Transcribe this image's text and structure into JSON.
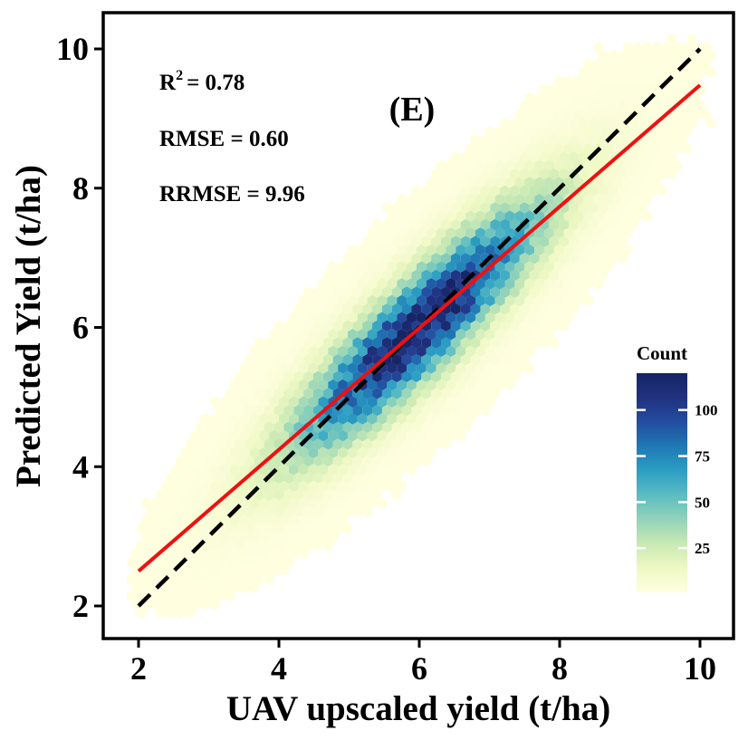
{
  "chart_data": {
    "type": "hexbin",
    "panel_label": "(E)",
    "xlabel": "UAV upscaled yield (t/ha)",
    "ylabel": "Predicted Yield (t/ha)",
    "xlim": [
      1.5,
      10.5
    ],
    "ylim": [
      1.5,
      10.5
    ],
    "xticks": [
      2,
      4,
      6,
      8,
      10
    ],
    "yticks": [
      2,
      4,
      6,
      8,
      10
    ],
    "x_tick_labels": [
      "2",
      "4",
      "6",
      "8",
      "10"
    ],
    "y_tick_labels": [
      "2",
      "4",
      "6",
      "8",
      "10"
    ],
    "stats": {
      "r2_label": "R",
      "r2_sup": "2",
      "r2_value": "= 0.78",
      "rmse": "RMSE = 0.60",
      "rrmse": "RRMSE = 9.96"
    },
    "reference_line": {
      "name": "1:1 line",
      "style": "dashed",
      "color": "#000000",
      "from": [
        2,
        2
      ],
      "to": [
        10,
        10
      ]
    },
    "fit_line": {
      "name": "regression fit",
      "color": "#ee1111",
      "from": [
        2,
        2.5
      ],
      "to": [
        10,
        9.48
      ]
    },
    "hexbin_model": {
      "center_x": 6.0,
      "center_y": 5.98,
      "sd_along_diagonal": 1.6,
      "sd_across_diagonal": 0.38,
      "peak_count": 118,
      "min_count": 1
    },
    "colorbar": {
      "title": "Count",
      "ticks": [
        25,
        50,
        75,
        100
      ],
      "tick_labels": [
        "25",
        "50",
        "75",
        "100"
      ],
      "range": [
        1,
        120
      ],
      "colors": [
        "#ffffe0",
        "#eef8c4",
        "#c9e9b4",
        "#93d3b9",
        "#5bbcc2",
        "#2c9ec3",
        "#1f79b5",
        "#234da0",
        "#20317f",
        "#162565"
      ]
    }
  }
}
